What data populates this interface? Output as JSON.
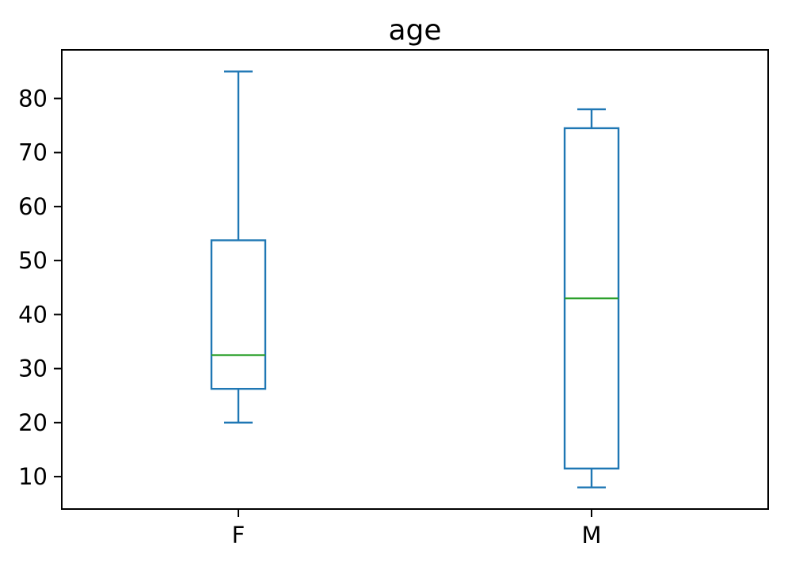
{
  "chart_data": {
    "type": "boxplot",
    "title": "age",
    "categories": [
      "F",
      "M"
    ],
    "series": [
      {
        "name": "F",
        "whisker_low": 20,
        "q1": 26.25,
        "median": 32.5,
        "q3": 53.75,
        "whisker_high": 85
      },
      {
        "name": "M",
        "whisker_low": 8,
        "q1": 11.5,
        "median": 43,
        "q3": 74.5,
        "whisker_high": 78
      }
    ],
    "yticks": [
      10,
      20,
      30,
      40,
      50,
      60,
      70,
      80
    ],
    "ylim": [
      4,
      89
    ],
    "xlabel": "",
    "ylabel": "",
    "grid": false,
    "legend": null,
    "colors": {
      "box": "#1f77b4",
      "median": "#2ca02c",
      "axis": "#000000",
      "text": "#000000",
      "background": "#ffffff"
    }
  }
}
